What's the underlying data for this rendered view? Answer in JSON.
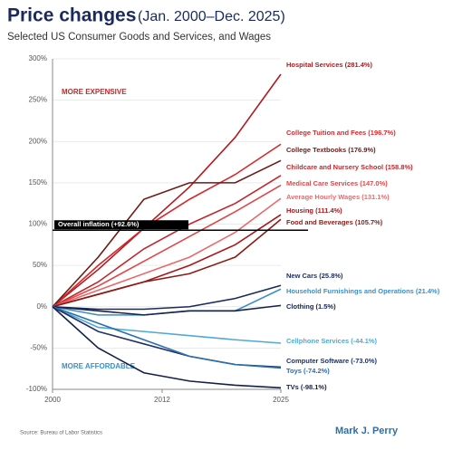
{
  "chart_data": {
    "type": "line",
    "title": "Price changes",
    "title_dates": "(Jan. 2000–Dec. 2025)",
    "subtitle": "Selected US Consumer Goods and Services, and Wages",
    "annotations": [
      "MORE EXPENSIVE",
      "MORE AFFORDABLE"
    ],
    "source": "Source:  Bureau of Labor Statistics",
    "author": "Mark J. Perry",
    "x": [
      2000,
      2005,
      2010,
      2015,
      2020,
      2025
    ],
    "xlim": [
      2000,
      2025
    ],
    "xticks": [
      2000,
      2012,
      2025
    ],
    "ylim": [
      -100,
      300
    ],
    "yticks": [
      {
        "value": -100,
        "label": "-100%"
      },
      {
        "value": -50,
        "label": "-50%"
      },
      {
        "value": 0,
        "label": "0%"
      },
      {
        "value": 50,
        "label": "50%"
      },
      {
        "value": 100,
        "label": "100%"
      },
      {
        "value": 150,
        "label": "150%"
      },
      {
        "value": 200,
        "label": "200%"
      },
      {
        "value": 250,
        "label": "250%"
      },
      {
        "value": 300,
        "label": "300%"
      }
    ],
    "grid": true,
    "reference_line": {
      "value": 92.6,
      "label": "Overall inflation (+92.6%)",
      "color": "#000000"
    },
    "series": [
      {
        "name": "Hospital Services (281.4%)",
        "color": "#b3191e",
        "values": [
          0,
          45,
          95,
          145,
          205,
          281.4
        ]
      },
      {
        "name": "College Tuition and Fees (196.7%)",
        "color": "#d9262b",
        "values": [
          0,
          50,
          95,
          130,
          160,
          196.7
        ]
      },
      {
        "name": "College Textbooks (176.9%)",
        "color": "#6e1a14",
        "values": [
          0,
          60,
          130,
          150,
          150,
          176.9
        ]
      },
      {
        "name": "Childcare and Nursery School (158.8%)",
        "color": "#c0282d",
        "values": [
          0,
          30,
          70,
          100,
          125,
          158.8
        ]
      },
      {
        "name": "Medical Care Services (147.0%)",
        "color": "#e0464a",
        "values": [
          0,
          25,
          55,
          85,
          115,
          147.0
        ]
      },
      {
        "name": "Average Hourly Wages (131.1%)",
        "color": "#e86a6d",
        "values": [
          0,
          20,
          40,
          60,
          90,
          131.1
        ]
      },
      {
        "name": "Housing (111.4%)",
        "color": "#a8171c",
        "values": [
          0,
          15,
          30,
          50,
          75,
          111.4
        ]
      },
      {
        "name": "Food and Beverages (105.7%)",
        "color": "#8c1a16",
        "values": [
          0,
          15,
          30,
          40,
          60,
          105.7
        ]
      },
      {
        "name": "New Cars (25.8%)",
        "color": "#1b2a5c",
        "values": [
          0,
          -3,
          -3,
          0,
          10,
          25.8
        ]
      },
      {
        "name": "Household Furnishings and Operations (21.4%)",
        "color": "#3a8fc7",
        "values": [
          0,
          -10,
          -10,
          -5,
          -5,
          21.4
        ]
      },
      {
        "name": "Clothing (1.5%)",
        "color": "#142250",
        "values": [
          0,
          -5,
          -10,
          -5,
          -5,
          1.5
        ]
      },
      {
        "name": "Cellphone Services (-44.1%)",
        "color": "#4fa9d6",
        "values": [
          0,
          -25,
          -30,
          -35,
          -40,
          -44.1
        ]
      },
      {
        "name": "Computer Software (-73.0%)",
        "color": "#1f3166",
        "values": [
          0,
          -30,
          -45,
          -60,
          -70,
          -73.0
        ]
      },
      {
        "name": "Toys (-74.2%)",
        "color": "#2a6fae",
        "values": [
          0,
          -20,
          -40,
          -60,
          -70,
          -74.2
        ]
      },
      {
        "name": "TVs (-98.1%)",
        "color": "#15204a",
        "values": [
          0,
          -50,
          -80,
          -90,
          -95,
          -98.1
        ]
      }
    ]
  }
}
